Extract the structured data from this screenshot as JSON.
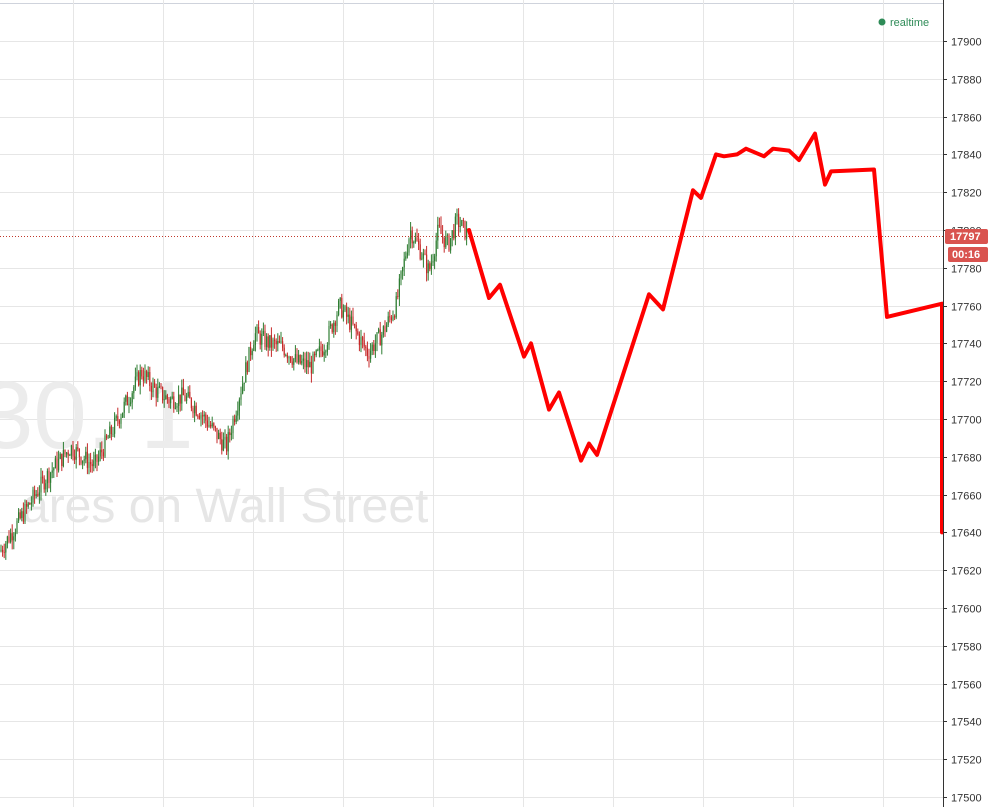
{
  "status": {
    "label": "realtime",
    "color": "#2e8b57"
  },
  "watermark": {
    "symbol": "30. 1",
    "subtitle": "ares on Wall Street"
  },
  "price_badge": {
    "value": "17797",
    "countdown": "00:16",
    "color": "#d9534f"
  },
  "colors": {
    "forecast": "#ff0000",
    "candle_up": "#2e7d32",
    "candle_down": "#c62828",
    "grid": "#e6e6e6",
    "current_price_line": "#c0392b"
  },
  "chart_data": {
    "type": "line",
    "title": "",
    "xlabel": "",
    "ylabel": "",
    "ylim": [
      17500,
      17900
    ],
    "xlim": [
      0,
      100
    ],
    "y_ticks": [
      17500,
      17520,
      17540,
      17560,
      17580,
      17600,
      17620,
      17640,
      17660,
      17680,
      17700,
      17720,
      17740,
      17760,
      17780,
      17800,
      17820,
      17840,
      17860,
      17880,
      17900
    ],
    "grid": true,
    "current_price": 17797,
    "series": [
      {
        "kind": "ohlc-candles",
        "x": [
          0,
          2.5,
          5,
          7.5,
          10,
          12.5,
          15,
          16.5,
          18,
          19.5,
          21,
          22.5,
          24,
          25.5,
          27,
          28.5,
          30,
          31.5,
          33,
          34.5,
          36,
          37.5,
          39,
          40.5,
          42,
          43.5,
          44.5,
          45.5,
          46.5,
          47.5,
          48.5,
          49.5
        ],
        "close": [
          17630,
          17650,
          17670,
          17685,
          17675,
          17700,
          17725,
          17715,
          17710,
          17712,
          17705,
          17695,
          17685,
          17715,
          17745,
          17740,
          17738,
          17730,
          17728,
          17740,
          17760,
          17748,
          17735,
          17745,
          17760,
          17800,
          17790,
          17778,
          17800,
          17792,
          17805,
          17798
        ]
      },
      {
        "kind": "forecast-line",
        "x": [
          50,
          52.6,
          53.8,
          56.3,
          57,
          58.9,
          60.1,
          62.6,
          63.6,
          64.5,
          65.6,
          69.6,
          71.3,
          74.3,
          75.1,
          76.7,
          77.8,
          79.5,
          80.3,
          81.9,
          82.9,
          84.6,
          85.5,
          87.2,
          88.3,
          89.1,
          91.9,
          93.9,
          100
        ],
        "y": [
          17800,
          17764,
          17771,
          17733,
          17740,
          17705,
          17714,
          17678,
          17687,
          17681,
          17694,
          17766,
          17758,
          17821,
          17817,
          17840,
          17839,
          17840,
          17843,
          17839,
          17843,
          17842,
          17837,
          17851,
          17824,
          17831,
          17832,
          17754,
          17761
        ]
      }
    ]
  }
}
